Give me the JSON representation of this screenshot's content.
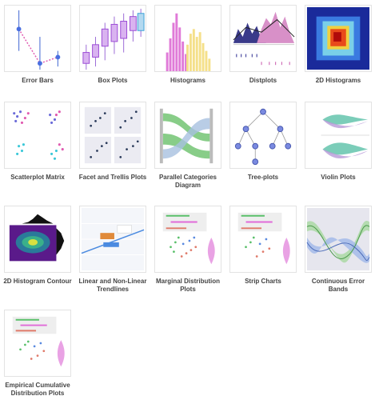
{
  "items": [
    {
      "label": "Error Bars"
    },
    {
      "label": "Box Plots"
    },
    {
      "label": "Histograms"
    },
    {
      "label": "Distplots"
    },
    {
      "label": "2D Histograms"
    },
    {
      "label": "Scatterplot Matrix"
    },
    {
      "label": "Facet and Trellis Plots"
    },
    {
      "label": "Parallel Categories Diagram"
    },
    {
      "label": "Tree-plots"
    },
    {
      "label": "Violin Plots"
    },
    {
      "label": "2D Histogram Contour"
    },
    {
      "label": "Linear and Non-Linear Trendlines"
    },
    {
      "label": "Marginal Distribution Plots"
    },
    {
      "label": "Strip Charts"
    },
    {
      "label": "Continuous Error Bands"
    },
    {
      "label": "Empirical Cumulative Distribution Plots"
    }
  ]
}
